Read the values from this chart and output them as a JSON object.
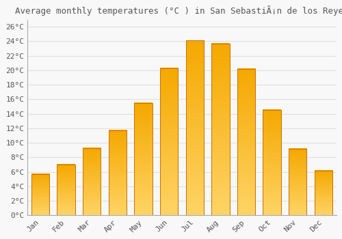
{
  "title": "Average monthly temperatures (°C ) in San SebastiÃ¡n de los Reyes",
  "months": [
    "Jan",
    "Feb",
    "Mar",
    "Apr",
    "May",
    "Jun",
    "Jul",
    "Aug",
    "Sep",
    "Oct",
    "Nov",
    "Dec"
  ],
  "temperatures": [
    5.7,
    7.0,
    9.3,
    11.7,
    15.5,
    20.3,
    24.1,
    23.7,
    20.2,
    14.5,
    9.2,
    6.2
  ],
  "bar_color_top": "#f5a800",
  "bar_color_bottom": "#ffd466",
  "bar_edge_color": "#c87000",
  "background_color": "#f8f8f8",
  "plot_bg_color": "#f8f8f8",
  "grid_color": "#e0e0e0",
  "text_color": "#555555",
  "ylim": [
    0,
    27
  ],
  "yticks": [
    0,
    2,
    4,
    6,
    8,
    10,
    12,
    14,
    16,
    18,
    20,
    22,
    24,
    26
  ],
  "ytick_labels": [
    "0°C",
    "2°C",
    "4°C",
    "6°C",
    "8°C",
    "10°C",
    "12°C",
    "14°C",
    "16°C",
    "18°C",
    "20°C",
    "22°C",
    "24°C",
    "26°C"
  ],
  "title_fontsize": 9,
  "tick_fontsize": 8,
  "bar_width": 0.7
}
